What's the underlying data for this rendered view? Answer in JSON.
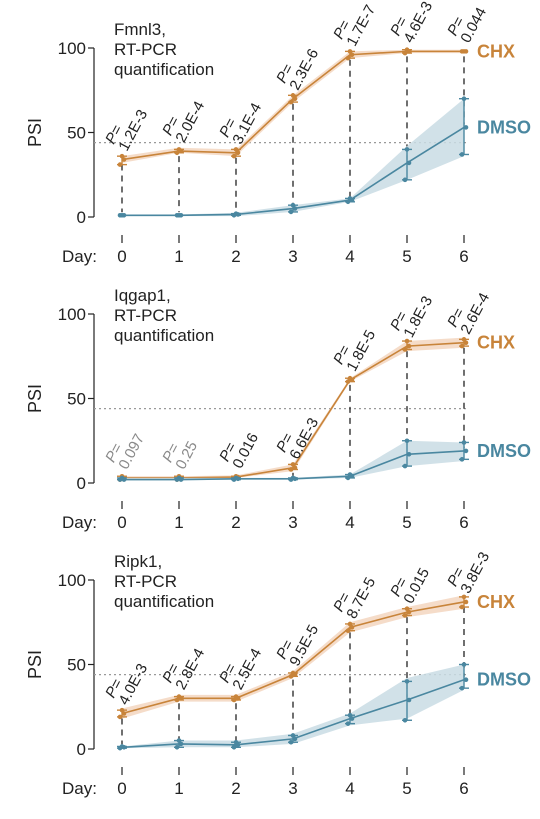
{
  "chart_data": [
    {
      "type": "line",
      "title_lines": [
        "Fmnl3,",
        "RT-PCR",
        "quantification"
      ],
      "ylabel": "PSI",
      "xlabel": "Day:",
      "x": [
        0,
        1,
        2,
        3,
        4,
        5,
        6
      ],
      "x_tick_labels": [
        "0",
        "1",
        "2",
        "3",
        "4",
        "5",
        "6"
      ],
      "yticks": [
        0,
        50,
        100
      ],
      "y_tick_labels": [
        "0",
        "50",
        "100"
      ],
      "ylim": [
        0,
        100
      ],
      "reference_line": 44,
      "series": [
        {
          "name": "CHX",
          "color": "#c8843a",
          "fill": "#f3d6c0",
          "values": [
            34,
            39,
            38,
            70,
            96,
            98,
            98
          ],
          "err_lo": [
            31,
            38,
            36,
            68,
            94,
            97,
            98
          ],
          "err_hi": [
            36,
            40,
            40,
            72,
            98,
            99,
            98
          ],
          "band_lo": [
            32,
            38,
            36,
            68,
            94,
            97,
            97
          ],
          "band_hi": [
            36,
            41,
            40,
            72,
            98,
            99,
            99
          ]
        },
        {
          "name": "DMSO",
          "color": "#4a87a0",
          "fill": "#c9dce4",
          "values": [
            1,
            1,
            1.5,
            5,
            10,
            32,
            53
          ],
          "err_lo": [
            1,
            1,
            1,
            3,
            9,
            22,
            37
          ],
          "err_hi": [
            1,
            1,
            2,
            7,
            11,
            40,
            70
          ],
          "band_lo": [
            0.5,
            0.5,
            0.5,
            3,
            9,
            22,
            36
          ],
          "band_hi": [
            1.5,
            1.5,
            2.5,
            7,
            11,
            42,
            70
          ]
        }
      ],
      "pvalues": [
        "P=\n1.2E-3",
        "P=\n2.0E-4",
        "P=\n3.1E-4",
        "P=\n2.3E-6",
        "P=\n1.7E-7",
        "P=\n4.6E-3",
        "P=\n0.044"
      ],
      "pvalue_gray": [
        false,
        false,
        false,
        false,
        false,
        false,
        false
      ]
    },
    {
      "type": "line",
      "title_lines": [
        "Iqgap1,",
        "RT-PCR",
        "quantification"
      ],
      "ylabel": "PSI",
      "xlabel": "Day:",
      "x": [
        0,
        1,
        2,
        3,
        4,
        5,
        6
      ],
      "x_tick_labels": [
        "0",
        "1",
        "2",
        "3",
        "4",
        "5",
        "6"
      ],
      "yticks": [
        0,
        50,
        100
      ],
      "y_tick_labels": [
        "0",
        "50",
        "100"
      ],
      "ylim": [
        0,
        100
      ],
      "reference_line": 44,
      "series": [
        {
          "name": "CHX",
          "color": "#c8843a",
          "fill": "#f3d6c0",
          "values": [
            3,
            3,
            3.5,
            9,
            61,
            81,
            83
          ],
          "err_lo": [
            2,
            2,
            3,
            8,
            60,
            79,
            81
          ],
          "err_hi": [
            4,
            4,
            4,
            11,
            62,
            84,
            85
          ],
          "band_lo": [
            2,
            2,
            3,
            7,
            60,
            78,
            80
          ],
          "band_hi": [
            4,
            4,
            4.5,
            11,
            62,
            84,
            86
          ]
        },
        {
          "name": "DMSO",
          "color": "#4a87a0",
          "fill": "#c9dce4",
          "values": [
            2,
            2,
            2.5,
            2.5,
            4,
            17,
            19
          ],
          "err_lo": [
            2,
            2,
            2,
            2,
            3,
            10,
            14
          ],
          "err_hi": [
            3,
            3,
            3,
            3,
            5,
            25,
            24
          ],
          "band_lo": [
            1.5,
            1.5,
            2,
            2,
            3,
            10,
            13
          ],
          "band_hi": [
            3,
            3,
            3,
            3,
            5,
            25,
            24
          ]
        }
      ],
      "pvalues": [
        "P=\n0.097",
        "P=\n0.25",
        "P=\n0.016",
        "P=\n6.6E-3",
        "P=\n1.8E-5",
        "P=\n1.8E-3",
        "P=\n2.6E-4"
      ],
      "pvalue_gray": [
        true,
        true,
        false,
        false,
        false,
        false,
        false
      ]
    },
    {
      "type": "line",
      "title_lines": [
        "Ripk1,",
        "RT-PCR",
        "quantification"
      ],
      "ylabel": "PSI",
      "xlabel": "Day:",
      "x": [
        0,
        1,
        2,
        3,
        4,
        5,
        6
      ],
      "x_tick_labels": [
        "0",
        "1",
        "2",
        "3",
        "4",
        "5",
        "6"
      ],
      "yticks": [
        0,
        50,
        100
      ],
      "y_tick_labels": [
        "0",
        "50",
        "100"
      ],
      "ylim": [
        0,
        100
      ],
      "reference_line": 44,
      "series": [
        {
          "name": "CHX",
          "color": "#c8843a",
          "fill": "#f3d6c0",
          "values": [
            21,
            30,
            30,
            44,
            72,
            81,
            87
          ],
          "err_lo": [
            19,
            29,
            29,
            43,
            70,
            79,
            84
          ],
          "err_hi": [
            23,
            31,
            31,
            45,
            74,
            83,
            90
          ],
          "band_lo": [
            18,
            28,
            28,
            42,
            69,
            78,
            83
          ],
          "band_hi": [
            24,
            32,
            32,
            46,
            75,
            84,
            91
          ]
        },
        {
          "name": "DMSO",
          "color": "#4a87a0",
          "fill": "#c9dce4",
          "values": [
            1,
            3,
            2.5,
            6,
            18,
            29,
            41
          ],
          "err_lo": [
            0.5,
            1,
            1,
            4,
            15,
            17,
            36
          ],
          "err_hi": [
            1.5,
            5,
            4,
            8,
            20,
            40,
            50
          ],
          "band_lo": [
            0.5,
            1,
            1,
            3,
            14,
            18,
            35
          ],
          "band_hi": [
            1.5,
            5,
            5,
            9,
            21,
            42,
            50
          ]
        }
      ],
      "pvalues": [
        "P=\n4.0E-3",
        "P=\n2.8E-4",
        "P=\n2.5E-4",
        "P=\n9.5E-5",
        "P=\n8.7E-5",
        "P=\n0.015",
        "P=\n3.8E-3"
      ],
      "pvalue_gray": [
        false,
        false,
        false,
        false,
        false,
        false,
        false
      ]
    }
  ]
}
